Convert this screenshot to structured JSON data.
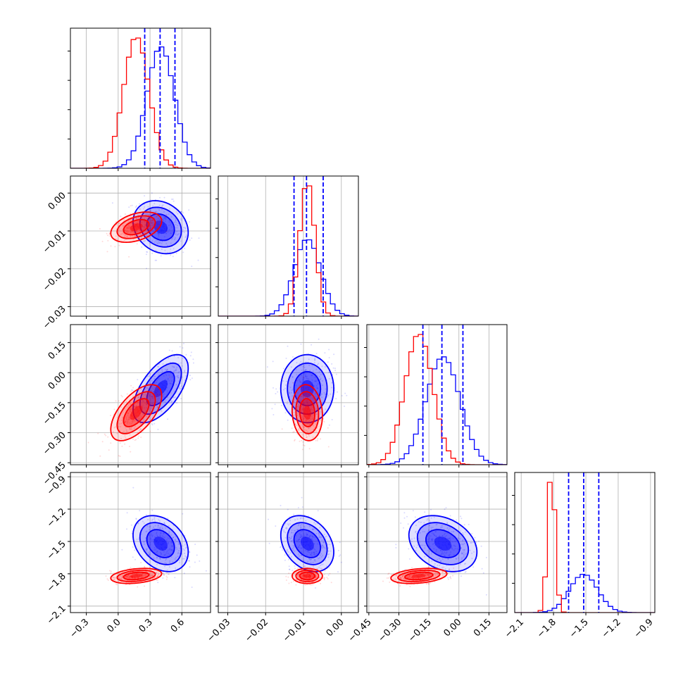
{
  "chart_data": {
    "type": "corner",
    "grid": true,
    "quantile_line_color": "#0000ff",
    "series": [
      {
        "color": "#0000ff",
        "mean": [
          0.4,
          -0.009,
          -0.08,
          -1.52
        ],
        "std": [
          0.13,
          0.0035,
          0.085,
          0.13
        ],
        "corr": [
          [
            1,
            -0.2,
            0.6,
            -0.3
          ],
          [
            -0.2,
            1,
            0.0,
            -0.3
          ],
          [
            0.6,
            0.0,
            1,
            -0.3
          ],
          [
            -0.3,
            -0.3,
            -0.3,
            1
          ]
        ]
      },
      {
        "color": "#ff0000",
        "mean": [
          0.17,
          -0.009,
          -0.2,
          -1.82
        ],
        "std": [
          0.12,
          0.002,
          0.07,
          0.035
        ],
        "corr": [
          [
            1,
            0.4,
            0.6,
            0.3
          ],
          [
            0.4,
            1,
            -0.1,
            0.0
          ],
          [
            0.6,
            -0.1,
            1,
            0.3
          ],
          [
            0.3,
            0.0,
            0.3,
            1
          ]
        ]
      }
    ],
    "quantiles": [
      [
        0.25,
        0.395,
        0.535
      ],
      [
        -0.0125,
        -0.0092,
        -0.0048
      ],
      [
        -0.18,
        -0.085,
        0.02
      ],
      [
        -1.66,
        -1.52,
        -1.38
      ]
    ],
    "axes": [
      {
        "range": [
          -0.45,
          0.87
        ],
        "ticks": [
          "−0.3",
          "0.0",
          "0.3",
          "0.6"
        ],
        "tick_values": [
          -0.3,
          0.0,
          0.3,
          0.6
        ]
      },
      {
        "range": [
          -0.0325,
          0.0045
        ],
        "ticks": [
          "−0.03",
          "−0.02",
          "−0.01",
          "0.00"
        ],
        "tick_values": [
          -0.03,
          -0.02,
          -0.01,
          0.0
        ]
      },
      {
        "range": [
          -0.46,
          0.24
        ],
        "ticks": [
          "−0.45",
          "−0.30",
          "−0.15",
          "0.00",
          "0.15"
        ],
        "tick_values": [
          -0.45,
          -0.3,
          -0.15,
          0.0,
          0.15
        ]
      },
      {
        "range": [
          -2.16,
          -0.86
        ],
        "ticks": [
          "−2.1",
          "−1.8",
          "−1.5",
          "−1.2",
          "−0.9"
        ],
        "tick_values": [
          -2.1,
          -1.8,
          -1.5,
          -1.2,
          -0.9
        ]
      }
    ]
  }
}
